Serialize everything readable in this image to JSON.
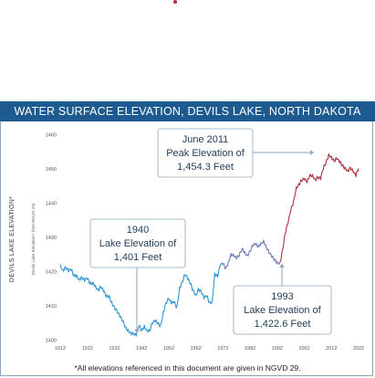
{
  "banner_title": "WATER SURFACE ELEVATION, DEVILS LAKE, NORTH DAKOTA",
  "footnote": "*All elevations referenced in this document are given in NGVD 29.",
  "colors": {
    "banner": "#1d5a8f",
    "line_early": "#2e93d4",
    "line_mid": "#6f7fb4",
    "line_late": "#a8343f",
    "accent_dot": "#c0272d"
  },
  "chart_data": {
    "type": "line",
    "title": "WATER SURFACE ELEVATION, DEVILS LAKE, NORTH DAKOTA",
    "ylabel": "DEVILS LAKE ELEVATION*",
    "ylabel_secondary": "Devils Lake Elevation* (feet NGVD 29)",
    "xlabel": "",
    "xlim": [
      1912,
      2022
    ],
    "ylim": [
      1400,
      1460
    ],
    "x_ticks": [
      "1912",
      "1922",
      "1932",
      "1942",
      "1952",
      "1962",
      "1972",
      "1982",
      "1992",
      "2002",
      "2012",
      "2022"
    ],
    "y_ticks": [
      "1400",
      "1410",
      "1420",
      "1430",
      "1440",
      "1450",
      "1460"
    ],
    "grid": false,
    "series": [
      {
        "segment": "early",
        "color": "#2e93d4",
        "points": [
          [
            1912,
            1422.0
          ],
          [
            1913,
            1420.5
          ],
          [
            1914,
            1421.2
          ],
          [
            1915,
            1419.8
          ],
          [
            1916,
            1420.2
          ],
          [
            1917,
            1418.6
          ],
          [
            1918,
            1419.0
          ],
          [
            1919,
            1417.9
          ],
          [
            1920,
            1418.3
          ],
          [
            1921,
            1417.0
          ],
          [
            1922,
            1417.6
          ],
          [
            1923,
            1416.2
          ],
          [
            1924,
            1416.8
          ],
          [
            1925,
            1415.9
          ],
          [
            1926,
            1414.6
          ],
          [
            1927,
            1415.2
          ],
          [
            1928,
            1413.9
          ],
          [
            1929,
            1412.4
          ],
          [
            1930,
            1412.9
          ],
          [
            1931,
            1411.2
          ],
          [
            1932,
            1409.6
          ],
          [
            1933,
            1408.1
          ],
          [
            1934,
            1406.5
          ],
          [
            1935,
            1405.3
          ],
          [
            1936,
            1403.8
          ],
          [
            1937,
            1403.1
          ],
          [
            1938,
            1402.2
          ],
          [
            1939,
            1401.6
          ],
          [
            1940,
            1401.0
          ],
          [
            1941,
            1403.8
          ],
          [
            1942,
            1402.7
          ],
          [
            1943,
            1404.2
          ],
          [
            1944,
            1403.0
          ],
          [
            1945,
            1402.5
          ],
          [
            1946,
            1404.6
          ],
          [
            1947,
            1405.2
          ],
          [
            1948,
            1404.8
          ],
          [
            1949,
            1404.3
          ],
          [
            1950,
            1408.2
          ],
          [
            1951,
            1410.8
          ],
          [
            1952,
            1411.6
          ],
          [
            1953,
            1410.4
          ],
          [
            1954,
            1411.0
          ],
          [
            1955,
            1409.6
          ],
          [
            1956,
            1415.4
          ],
          [
            1957,
            1417.0
          ],
          [
            1958,
            1418.8
          ],
          [
            1959,
            1417.5
          ],
          [
            1960,
            1416.2
          ],
          [
            1961,
            1414.6
          ],
          [
            1962,
            1413.3
          ],
          [
            1963,
            1415.0
          ],
          [
            1964,
            1413.7
          ],
          [
            1965,
            1411.9
          ],
          [
            1966,
            1412.6
          ],
          [
            1967,
            1411.0
          ],
          [
            1968,
            1411.3
          ],
          [
            1969,
            1419.5
          ],
          [
            1970,
            1418.3
          ],
          [
            1971,
            1421.4
          ],
          [
            1972,
            1422.0
          ]
        ]
      },
      {
        "segment": "mid",
        "color": "#6f7fb4",
        "points": [
          [
            1972,
            1422.0
          ],
          [
            1973,
            1420.8
          ],
          [
            1974,
            1422.9
          ],
          [
            1975,
            1425.2
          ],
          [
            1976,
            1424.5
          ],
          [
            1977,
            1423.5
          ],
          [
            1978,
            1424.2
          ],
          [
            1979,
            1426.6
          ],
          [
            1980,
            1425.8
          ],
          [
            1981,
            1424.9
          ],
          [
            1982,
            1425.8
          ],
          [
            1983,
            1427.2
          ],
          [
            1984,
            1427.6
          ],
          [
            1985,
            1427.0
          ],
          [
            1986,
            1428.4
          ],
          [
            1987,
            1429.1
          ],
          [
            1988,
            1427.1
          ],
          [
            1989,
            1425.2
          ],
          [
            1990,
            1424.0
          ],
          [
            1991,
            1423.1
          ],
          [
            1992,
            1422.8
          ],
          [
            1993,
            1422.6
          ]
        ]
      },
      {
        "segment": "late",
        "color": "#a8343f",
        "points": [
          [
            1993,
            1422.6
          ],
          [
            1994,
            1426.5
          ],
          [
            1995,
            1431.0
          ],
          [
            1996,
            1433.8
          ],
          [
            1997,
            1437.6
          ],
          [
            1998,
            1440.4
          ],
          [
            1999,
            1444.6
          ],
          [
            2000,
            1445.6
          ],
          [
            2001,
            1446.3
          ],
          [
            2002,
            1446.6
          ],
          [
            2003,
            1445.8
          ],
          [
            2004,
            1448.1
          ],
          [
            2005,
            1448.3
          ],
          [
            2006,
            1447.0
          ],
          [
            2007,
            1447.3
          ],
          [
            2008,
            1446.7
          ],
          [
            2009,
            1449.8
          ],
          [
            2010,
            1451.8
          ],
          [
            2011,
            1454.3
          ],
          [
            2012,
            1453.6
          ],
          [
            2013,
            1452.1
          ],
          [
            2014,
            1452.6
          ],
          [
            2015,
            1451.6
          ],
          [
            2016,
            1450.9
          ],
          [
            2017,
            1450.4
          ],
          [
            2018,
            1449.6
          ],
          [
            2019,
            1450.3
          ],
          [
            2020,
            1448.8
          ],
          [
            2021,
            1447.6
          ],
          [
            2022,
            1450.0
          ]
        ]
      }
    ],
    "annotations": [
      {
        "id": "1940",
        "lines": [
          "1940",
          "Lake Elevation of",
          "1,401 Feet"
        ],
        "x": 1940,
        "y": 1401.0
      },
      {
        "id": "1993",
        "lines": [
          "1993",
          "Lake Elevation of",
          "1,422.6 Feet"
        ],
        "x": 1993,
        "y": 1422.6
      },
      {
        "id": "2011",
        "lines": [
          "June 2011",
          "Peak Elevation of",
          "1,454.3 Feet"
        ],
        "x": 2011,
        "y": 1454.3
      }
    ]
  }
}
